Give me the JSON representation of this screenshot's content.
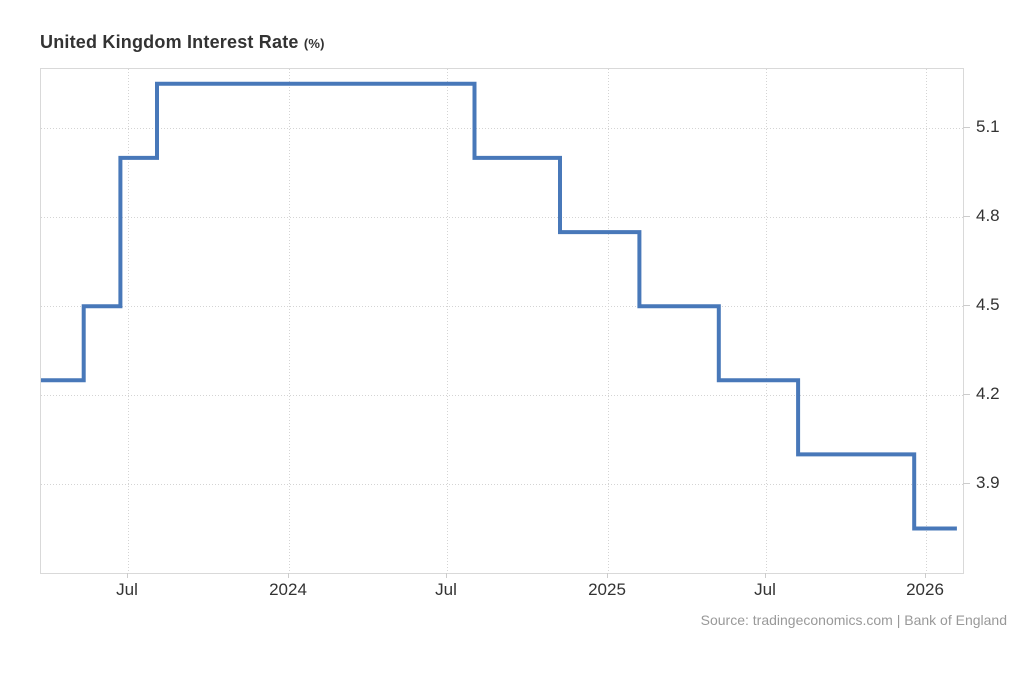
{
  "title": {
    "main": "United Kingdom Interest Rate",
    "unit": "(%)"
  },
  "source": "Source: tradingeconomics.com | Bank of England",
  "colors": {
    "line": "#4878b9",
    "grid": "#d4d4d4",
    "plot_border": "#d9d9d9",
    "tick_mark": "#cccccc",
    "title_text": "#333333",
    "tick_label_text": "#333333",
    "source_text": "#999999",
    "background": "#ffffff"
  },
  "chart_data": {
    "type": "line",
    "line_style": "step-after",
    "title": "United Kingdom Interest Rate (%)",
    "xlabel": "",
    "ylabel": "",
    "legend": false,
    "grid": true,
    "x": [
      "2023-03-23",
      "2023-05-11",
      "2023-06-22",
      "2023-08-03",
      "2024-08-01",
      "2024-11-07",
      "2025-02-06",
      "2025-05-08",
      "2025-08-07",
      "2025-12-18"
    ],
    "values": [
      4.25,
      4.5,
      5.0,
      5.25,
      5.0,
      4.75,
      4.5,
      4.25,
      4.0,
      3.75
    ],
    "x_end": "2026-02-05",
    "xlim": [
      "2023-03-23",
      "2026-02-12"
    ],
    "ylim": [
      3.6,
      5.3
    ],
    "y_ticks": [
      {
        "value": 5.1,
        "label": "5.1"
      },
      {
        "value": 4.8,
        "label": "4.8"
      },
      {
        "value": 4.5,
        "label": "4.5"
      },
      {
        "value": 4.2,
        "label": "4.2"
      },
      {
        "value": 3.9,
        "label": "3.9"
      }
    ],
    "x_ticks": [
      {
        "date": "2023-07-01",
        "label": "Jul"
      },
      {
        "date": "2024-01-01",
        "label": "2024"
      },
      {
        "date": "2024-07-01",
        "label": "Jul"
      },
      {
        "date": "2025-01-01",
        "label": "2025"
      },
      {
        "date": "2025-07-01",
        "label": "Jul"
      },
      {
        "date": "2026-01-01",
        "label": "2026"
      }
    ]
  }
}
